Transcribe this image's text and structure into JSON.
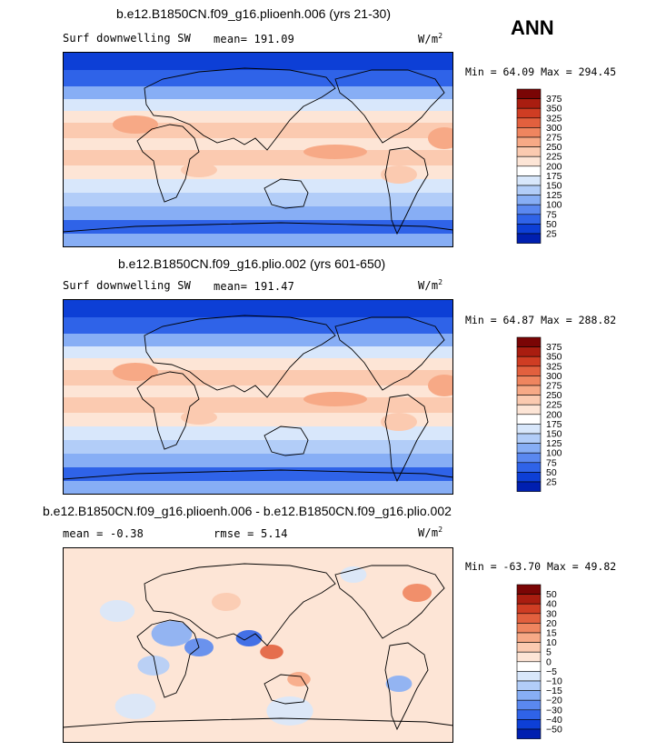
{
  "season": "ANN",
  "colors": {
    "sw_levels": [
      "#000080",
      "#001fb0",
      "#0d3fd6",
      "#2f63e8",
      "#5a88f0",
      "#87aef5",
      "#b2cdf8",
      "#d8e7fb",
      "#ffffff",
      "#fde5d6",
      "#fbcab0",
      "#f7a986",
      "#ef855f",
      "#e2603e",
      "#cf3d23",
      "#a91d10",
      "#7a0505"
    ],
    "diff_levels": [
      "#000080",
      "#001fb0",
      "#0d3fd6",
      "#2f63e8",
      "#5a88f0",
      "#87aef5",
      "#b2cdf8",
      "#d8e7fb",
      "#ffffff",
      "#fde5d6",
      "#fbcab0",
      "#f7a986",
      "#ef855f",
      "#e2603e",
      "#cf3d23",
      "#a91d10",
      "#7a0505"
    ]
  },
  "panels": [
    {
      "title": "b.e12.B1850CN.f09_g16.plioenh.006 (yrs 21-30)",
      "variable": "Surf downwelling SW",
      "mean_text": "mean= 191.09",
      "units": "W/m",
      "units_exp": "2",
      "min_max": "Min =  64.09 Max = 294.45"
    },
    {
      "title": "b.e12.B1850CN.f09_g16.plio.002 (yrs 601-650)",
      "variable": "Surf downwelling SW",
      "mean_text": "mean= 191.47",
      "units": "W/m",
      "units_exp": "2",
      "min_max": "Min =  64.87 Max = 288.82"
    },
    {
      "title": "b.e12.B1850CN.f09_g16.plioenh.006 - b.e12.B1850CN.f09_g16.plio.002",
      "mean_text": "mean =  -0.38",
      "rmse_text": "rmse =   5.14",
      "units": "W/m",
      "units_exp": "2",
      "min_max": "Min = -63.70 Max =  49.82"
    }
  ],
  "chart_data": [
    {
      "type": "heatmap",
      "title": "b.e12.B1850CN.f09_g16.plioenh.006 (yrs 21-30)",
      "variable": "Surf downwelling SW",
      "units": "W/m^2",
      "mean": 191.09,
      "min": 64.09,
      "max": 294.45,
      "colorbar_levels": [
        "375",
        "350",
        "325",
        "300",
        "275",
        "250",
        "225",
        "200",
        "175",
        "150",
        "125",
        "100",
        "75",
        "50",
        "25"
      ]
    },
    {
      "type": "heatmap",
      "title": "b.e12.B1850CN.f09_g16.plio.002 (yrs 601-650)",
      "variable": "Surf downwelling SW",
      "units": "W/m^2",
      "mean": 191.47,
      "min": 64.87,
      "max": 288.82,
      "colorbar_levels": [
        "375",
        "350",
        "325",
        "300",
        "275",
        "250",
        "225",
        "200",
        "175",
        "150",
        "125",
        "100",
        "75",
        "50",
        "25"
      ]
    },
    {
      "type": "heatmap",
      "title": "b.e12.B1850CN.f09_g16.plioenh.006 - b.e12.B1850CN.f09_g16.plio.002",
      "units": "W/m^2",
      "mean": -0.38,
      "rmse": 5.14,
      "min": -63.7,
      "max": 49.82,
      "colorbar_levels": [
        "50",
        "40",
        "30",
        "20",
        "15",
        "10",
        "5",
        "0",
        "−5",
        "−10",
        "−15",
        "−20",
        "−30",
        "−40",
        "−50"
      ]
    }
  ]
}
